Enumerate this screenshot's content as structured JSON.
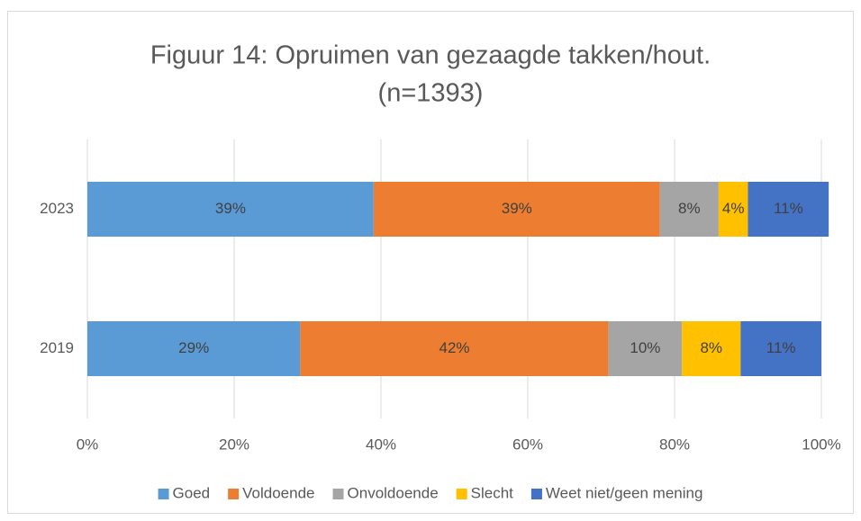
{
  "chart_data": {
    "type": "stacked_barh",
    "title": "Figuur 14: Opruimen van gezaagde takken/hout.",
    "subtitle": "(n=1393)",
    "categories": [
      "2023",
      "2019"
    ],
    "series": [
      {
        "name": "Goed",
        "color": "#5b9bd5",
        "values": [
          39,
          29
        ],
        "value_labels": [
          "39%",
          "29%"
        ]
      },
      {
        "name": "Voldoende",
        "color": "#ed7d31",
        "values": [
          39,
          42
        ],
        "value_labels": [
          "39%",
          "42%"
        ]
      },
      {
        "name": "Onvoldoende",
        "color": "#a5a5a5",
        "values": [
          8,
          10
        ],
        "value_labels": [
          "8%",
          "10%"
        ]
      },
      {
        "name": "Slecht",
        "color": "#ffc000",
        "values": [
          4,
          8
        ],
        "value_labels": [
          "4%",
          "8%"
        ]
      },
      {
        "name": "Weet niet/geen mening",
        "color": "#4472c4",
        "values": [
          11,
          11
        ],
        "value_labels": [
          "11%",
          "11%"
        ]
      }
    ],
    "xlim": [
      0,
      100
    ],
    "xticks": [
      {
        "value": 0,
        "label": "0%"
      },
      {
        "value": 20,
        "label": "20%"
      },
      {
        "value": 40,
        "label": "40%"
      },
      {
        "value": 60,
        "label": "60%"
      },
      {
        "value": 80,
        "label": "80%"
      },
      {
        "value": 100,
        "label": "100%"
      }
    ],
    "grid": true,
    "legend": "bottom"
  }
}
